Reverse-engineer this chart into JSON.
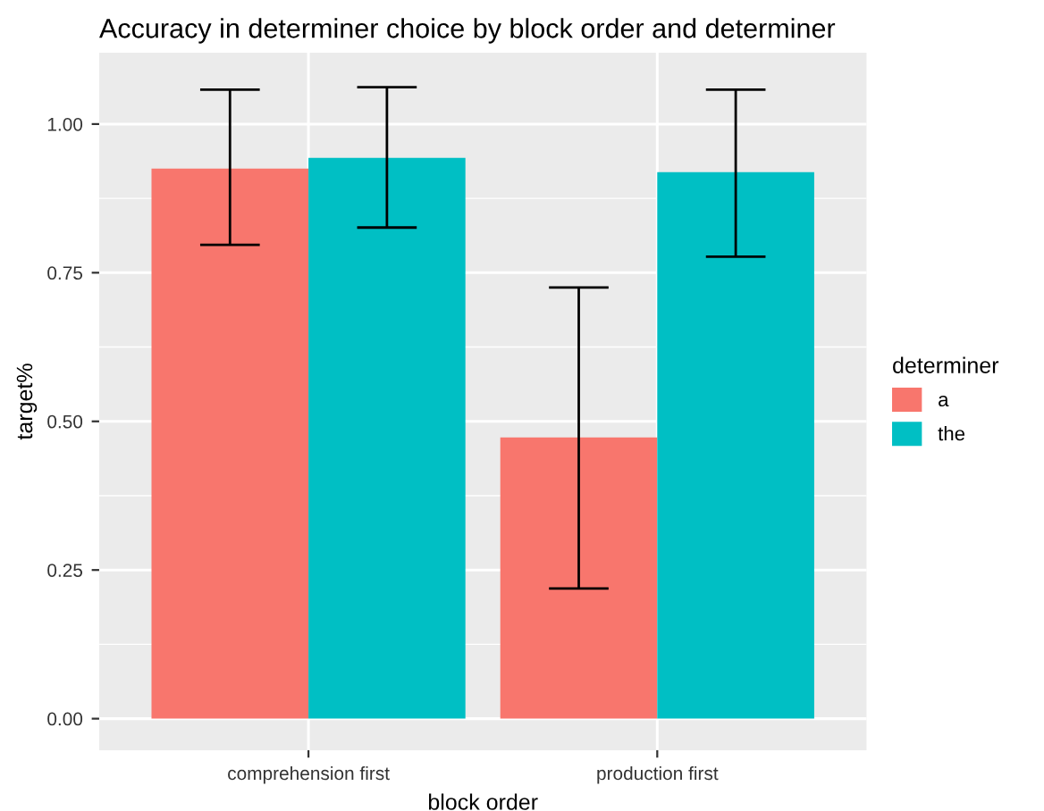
{
  "chart_data": {
    "type": "bar",
    "title": "Accuracy in determiner choice by block order and determiner",
    "xlabel": "block order",
    "ylabel": "target%",
    "legend_title": "determiner",
    "categories": [
      "comprehension first",
      "production first"
    ],
    "series": [
      {
        "name": "a",
        "color": "#f8766d",
        "values": [
          0.925,
          0.473
        ],
        "errors": [
          [
            0.797,
            1.058
          ],
          [
            0.219,
            0.725
          ]
        ]
      },
      {
        "name": "the",
        "color": "#00bfc4",
        "values": [
          0.943,
          0.919
        ],
        "errors": [
          [
            0.826,
            1.062
          ],
          [
            0.777,
            1.058
          ]
        ]
      }
    ],
    "ylim": [
      -0.053,
      1.12
    ],
    "yticks": [
      {
        "value": 0,
        "label": "0.00"
      },
      {
        "value": 0.25,
        "label": "0.25"
      },
      {
        "value": 0.5,
        "label": "0.50"
      },
      {
        "value": 0.75,
        "label": "0.75"
      },
      {
        "value": 1,
        "label": "1.00"
      }
    ],
    "grid": true,
    "legend": "right"
  }
}
